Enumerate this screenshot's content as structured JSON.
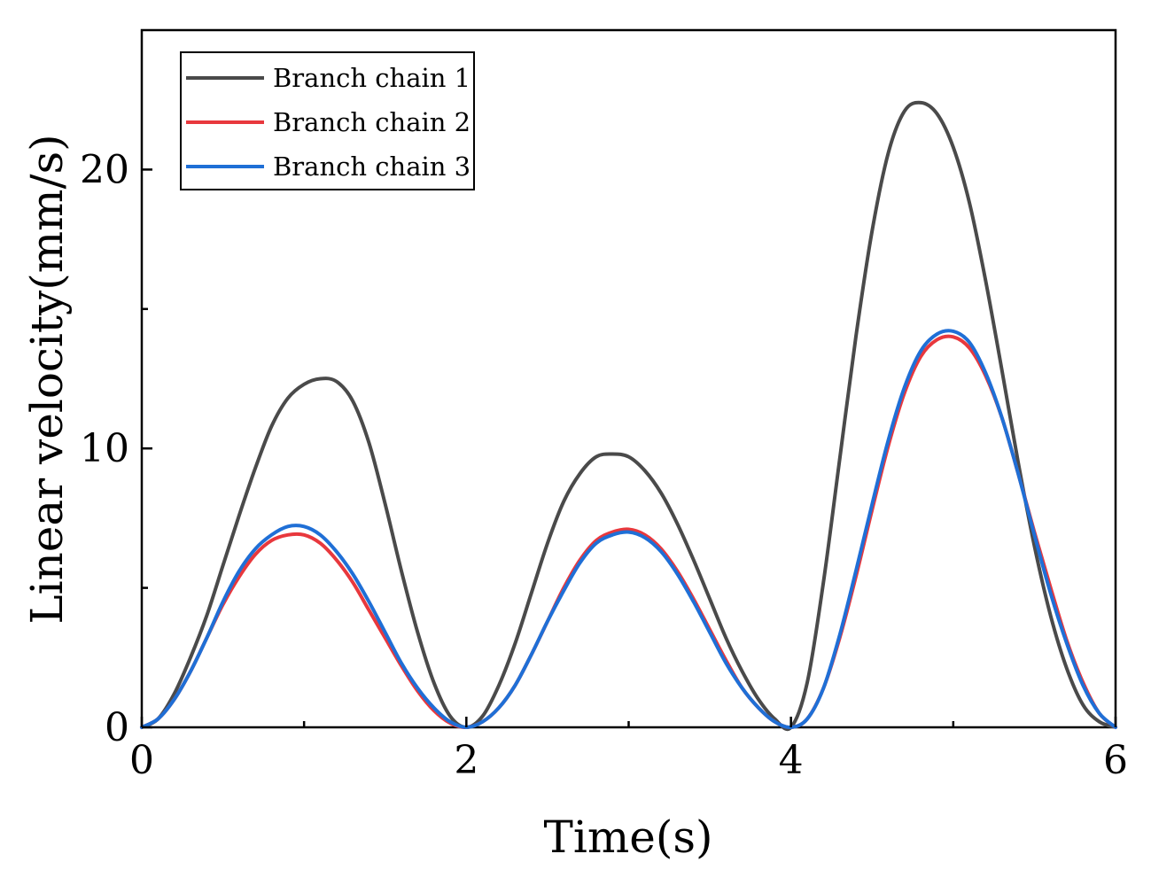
{
  "chart_data": {
    "type": "line",
    "title": "",
    "xlabel": "Time(s)",
    "ylabel": "Linear velocity(mm/s)",
    "xlim": [
      0,
      6
    ],
    "ylim": [
      0,
      25
    ],
    "xticks": [
      0,
      2,
      4,
      6
    ],
    "xtick_labels": [
      "0",
      "2",
      "4",
      "6"
    ],
    "yticks": [
      0,
      10,
      20
    ],
    "ytick_labels": [
      "0",
      "10",
      "20"
    ],
    "grid": false,
    "legend_position": "top-left",
    "series": [
      {
        "name": "Branch chain 1",
        "color": "#4a4a4a",
        "x": [
          0,
          0.1,
          0.2,
          0.3,
          0.4,
          0.5,
          0.6,
          0.7,
          0.8,
          0.9,
          1.0,
          1.1,
          1.2,
          1.3,
          1.4,
          1.5,
          1.6,
          1.7,
          1.8,
          1.9,
          2.0,
          2.1,
          2.2,
          2.3,
          2.4,
          2.5,
          2.6,
          2.7,
          2.8,
          2.9,
          3.0,
          3.1,
          3.2,
          3.3,
          3.4,
          3.5,
          3.6,
          3.7,
          3.8,
          3.9,
          4.0,
          4.1,
          4.2,
          4.3,
          4.4,
          4.5,
          4.6,
          4.7,
          4.8,
          4.9,
          5.0,
          5.1,
          5.2,
          5.3,
          5.4,
          5.5,
          5.6,
          5.7,
          5.8,
          5.9,
          6.0
        ],
        "y": [
          0,
          0.3,
          1.2,
          2.5,
          4.0,
          5.8,
          7.6,
          9.3,
          10.8,
          11.8,
          12.3,
          12.5,
          12.4,
          11.7,
          10.2,
          8.0,
          5.6,
          3.4,
          1.6,
          0.4,
          0,
          0.4,
          1.5,
          3.0,
          4.8,
          6.6,
          8.1,
          9.1,
          9.7,
          9.8,
          9.7,
          9.2,
          8.4,
          7.3,
          6.0,
          4.6,
          3.2,
          2.0,
          1.0,
          0.3,
          0,
          1.6,
          5.2,
          9.6,
          14.0,
          17.8,
          20.6,
          22.1,
          22.4,
          22.0,
          20.8,
          18.8,
          16.0,
          12.8,
          9.5,
          6.5,
          4.0,
          2.1,
          0.8,
          0.2,
          0
        ]
      },
      {
        "name": "Branch chain 2",
        "color": "#e8383d",
        "x": [
          0,
          0.1,
          0.2,
          0.3,
          0.4,
          0.5,
          0.6,
          0.7,
          0.8,
          0.9,
          1.0,
          1.1,
          1.2,
          1.3,
          1.4,
          1.5,
          1.6,
          1.7,
          1.8,
          1.9,
          2.0,
          2.1,
          2.2,
          2.3,
          2.4,
          2.5,
          2.6,
          2.7,
          2.8,
          2.9,
          3.0,
          3.1,
          3.2,
          3.3,
          3.4,
          3.5,
          3.6,
          3.7,
          3.8,
          3.9,
          4.0,
          4.1,
          4.2,
          4.3,
          4.4,
          4.5,
          4.6,
          4.7,
          4.8,
          4.9,
          5.0,
          5.1,
          5.2,
          5.3,
          5.4,
          5.5,
          5.6,
          5.7,
          5.8,
          5.9,
          6.0
        ],
        "y": [
          0,
          0.3,
          1.0,
          2.0,
          3.2,
          4.4,
          5.4,
          6.2,
          6.7,
          6.9,
          6.9,
          6.6,
          6.0,
          5.2,
          4.2,
          3.2,
          2.2,
          1.3,
          0.6,
          0.15,
          0,
          0.2,
          0.7,
          1.5,
          2.6,
          3.8,
          5.0,
          6.0,
          6.7,
          7.0,
          7.1,
          6.9,
          6.4,
          5.6,
          4.6,
          3.5,
          2.4,
          1.4,
          0.7,
          0.2,
          0,
          0.3,
          1.4,
          3.2,
          5.4,
          7.8,
          10.1,
          12.0,
          13.3,
          13.9,
          14.0,
          13.6,
          12.6,
          11.1,
          9.1,
          7.0,
          5.0,
          3.1,
          1.6,
          0.5,
          0
        ]
      },
      {
        "name": "Branch chain 3",
        "color": "#1f6fd6",
        "x": [
          0,
          0.1,
          0.2,
          0.3,
          0.4,
          0.5,
          0.6,
          0.7,
          0.8,
          0.9,
          1.0,
          1.1,
          1.2,
          1.3,
          1.4,
          1.5,
          1.6,
          1.7,
          1.8,
          1.9,
          2.0,
          2.1,
          2.2,
          2.3,
          2.4,
          2.5,
          2.6,
          2.7,
          2.8,
          2.9,
          3.0,
          3.1,
          3.2,
          3.3,
          3.4,
          3.5,
          3.6,
          3.7,
          3.8,
          3.9,
          4.0,
          4.1,
          4.2,
          4.3,
          4.4,
          4.5,
          4.6,
          4.7,
          4.8,
          4.9,
          5.0,
          5.1,
          5.2,
          5.3,
          5.4,
          5.5,
          5.6,
          5.7,
          5.8,
          5.9,
          6.0
        ],
        "y": [
          0,
          0.3,
          1.0,
          2.0,
          3.2,
          4.5,
          5.6,
          6.4,
          6.9,
          7.2,
          7.2,
          6.9,
          6.3,
          5.5,
          4.5,
          3.4,
          2.3,
          1.4,
          0.7,
          0.2,
          0,
          0.2,
          0.7,
          1.5,
          2.6,
          3.8,
          4.9,
          5.9,
          6.6,
          6.9,
          7.0,
          6.8,
          6.3,
          5.5,
          4.5,
          3.4,
          2.3,
          1.4,
          0.7,
          0.2,
          0,
          0.3,
          1.4,
          3.3,
          5.6,
          8.0,
          10.3,
          12.2,
          13.5,
          14.1,
          14.2,
          13.8,
          12.7,
          11.1,
          9.1,
          6.9,
          4.8,
          3.0,
          1.5,
          0.5,
          0
        ]
      }
    ]
  }
}
